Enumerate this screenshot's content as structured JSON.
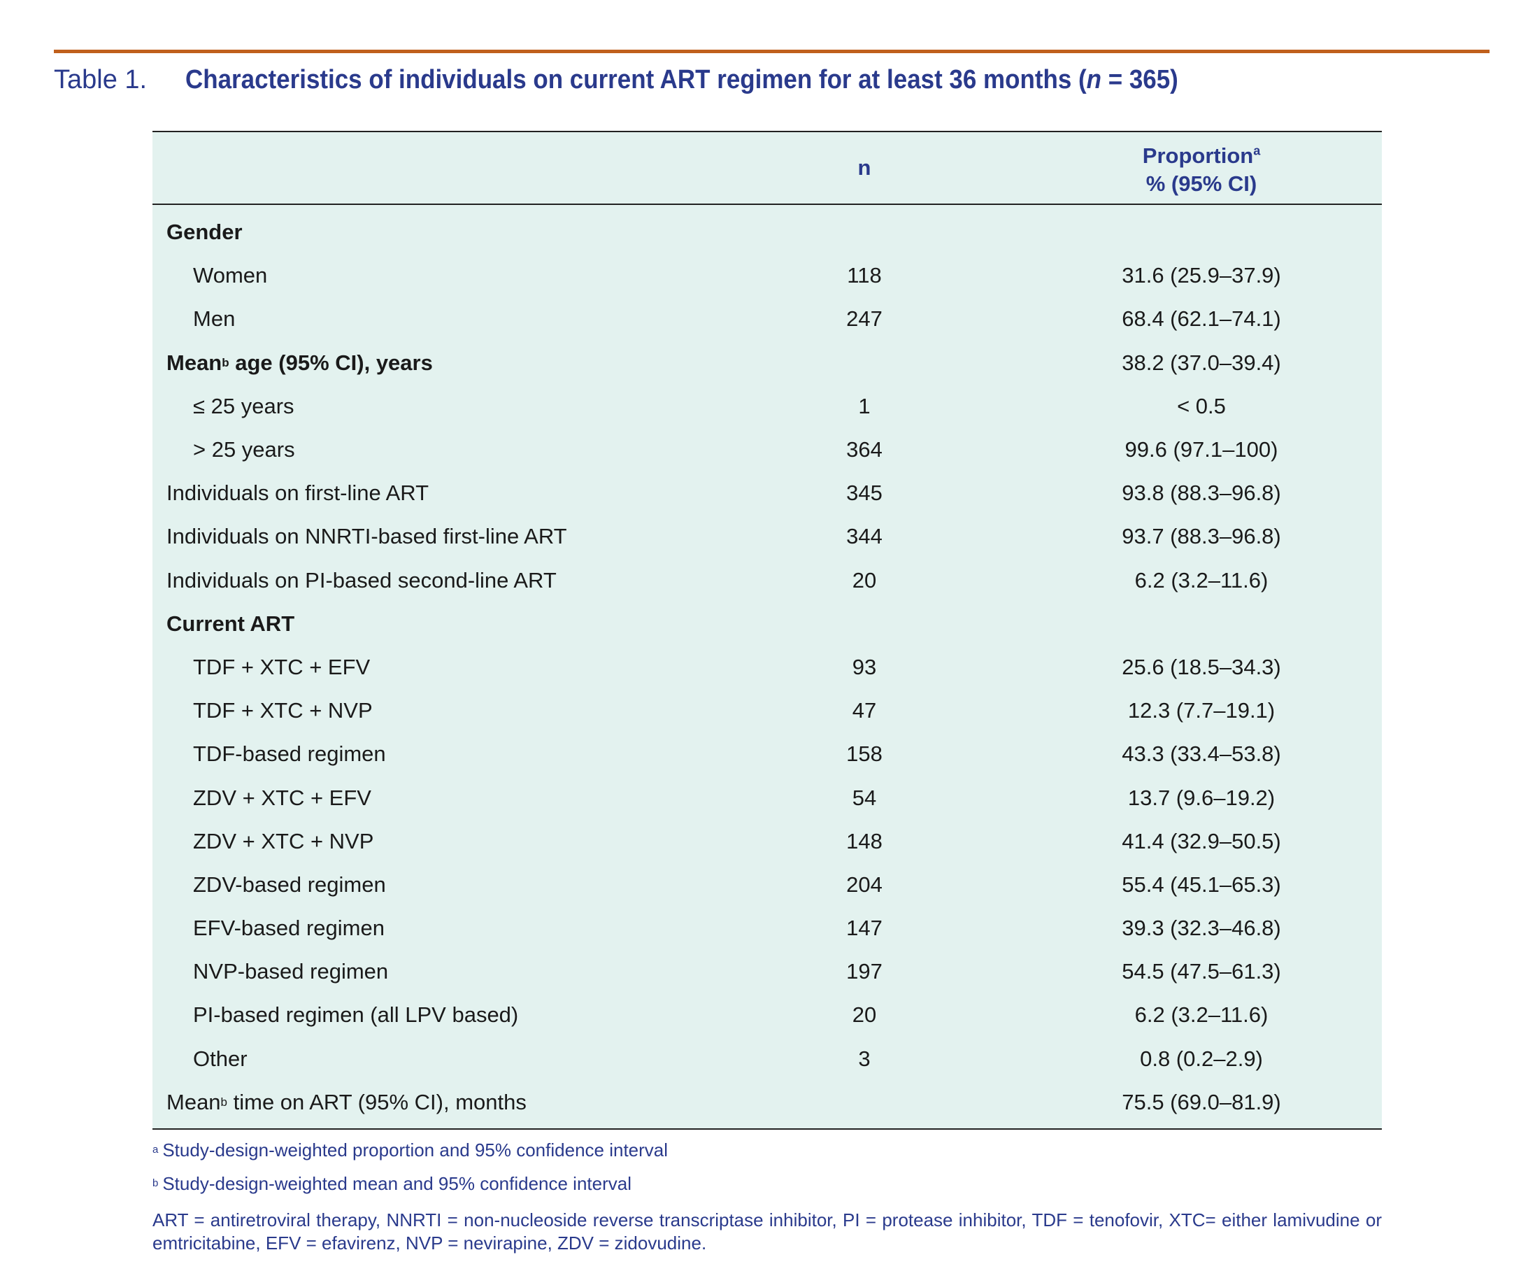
{
  "title": {
    "label": "Table 1.",
    "text_before_n": "Characteristics of individuals on current ART regimen for at least 36 months (",
    "n_symbol": "n",
    "text_after_n": " = 365)"
  },
  "table": {
    "header": {
      "col_n": "n",
      "col_prop_line1": "Proportion",
      "col_prop_sup": "a",
      "col_prop_line2": "% (95% CI)"
    },
    "rows": [
      {
        "label": "Gender",
        "n": "",
        "prop": "",
        "bold": true,
        "indent": false
      },
      {
        "label": "Women",
        "n": "118",
        "prop": "31.6 (25.9–37.9)",
        "bold": false,
        "indent": true
      },
      {
        "label": "Men",
        "n": "247",
        "prop": "68.4 (62.1–74.1)",
        "bold": false,
        "indent": true
      },
      {
        "label": "Mean",
        "sup": "b",
        "label_rest": " age (95% CI), years",
        "n": "",
        "prop": "38.2 (37.0–39.4)",
        "bold": true,
        "indent": false
      },
      {
        "label": "≤ 25 years",
        "n": "1",
        "prop": "< 0.5",
        "bold": false,
        "indent": true
      },
      {
        "label": "> 25 years",
        "n": "364",
        "prop": "99.6 (97.1–100)",
        "bold": false,
        "indent": true
      },
      {
        "label": "Individuals on first-line ART",
        "n": "345",
        "prop": "93.8 (88.3–96.8)",
        "bold": false,
        "indent": false
      },
      {
        "label": "Individuals on NNRTI-based first-line ART",
        "n": "344",
        "prop": "93.7 (88.3–96.8)",
        "bold": false,
        "indent": false
      },
      {
        "label": "Individuals on PI-based second-line ART",
        "n": "20",
        "prop": "6.2 (3.2–11.6)",
        "bold": false,
        "indent": false
      },
      {
        "label": "Current ART",
        "n": "",
        "prop": "",
        "bold": true,
        "indent": false
      },
      {
        "label": "TDF + XTC + EFV",
        "n": "93",
        "prop": "25.6 (18.5–34.3)",
        "bold": false,
        "indent": true
      },
      {
        "label": "TDF + XTC + NVP",
        "n": "47",
        "prop": "12.3 (7.7–19.1)",
        "bold": false,
        "indent": true
      },
      {
        "label": "TDF-based regimen",
        "n": "158",
        "prop": "43.3 (33.4–53.8)",
        "bold": false,
        "indent": true
      },
      {
        "label": "ZDV + XTC + EFV",
        "n": "54",
        "prop": "13.7 (9.6–19.2)",
        "bold": false,
        "indent": true
      },
      {
        "label": "ZDV + XTC + NVP",
        "n": "148",
        "prop": "41.4 (32.9–50.5)",
        "bold": false,
        "indent": true
      },
      {
        "label": "ZDV-based regimen",
        "n": "204",
        "prop": "55.4 (45.1–65.3)",
        "bold": false,
        "indent": true
      },
      {
        "label": "EFV-based regimen",
        "n": "147",
        "prop": "39.3 (32.3–46.8)",
        "bold": false,
        "indent": true
      },
      {
        "label": "NVP-based regimen",
        "n": "197",
        "prop": "54.5 (47.5–61.3)",
        "bold": false,
        "indent": true
      },
      {
        "label": "PI-based regimen (all LPV based)",
        "n": "20",
        "prop": "6.2 (3.2–11.6)",
        "bold": false,
        "indent": true
      },
      {
        "label": "Other",
        "n": "3",
        "prop": "0.8 (0.2–2.9)",
        "bold": false,
        "indent": true
      },
      {
        "label": "Mean",
        "sup": "b",
        "label_rest": " time on ART (95% CI), months",
        "n": "",
        "prop": "75.5 (69.0–81.9)",
        "bold": false,
        "indent": false
      }
    ]
  },
  "footnotes": {
    "a_mark": "a",
    "a_text": "Study-design-weighted proportion and 95% confidence interval",
    "b_mark": "b",
    "b_text": "Study-design-weighted mean and 95% confidence interval",
    "abbreviations": "ART = antiretroviral therapy, NNRTI = non-nucleoside reverse transcriptase inhibitor, PI = protease inhibitor, TDF = tenofovir, XTC= either lamivudine or emtricitabine, EFV = efavirenz, NVP = nevirapine, ZDV = zidovudine."
  },
  "colors": {
    "rule": "#c0601c",
    "title_blue": "#2a3a8c",
    "table_bg": "#e3f2ef"
  }
}
